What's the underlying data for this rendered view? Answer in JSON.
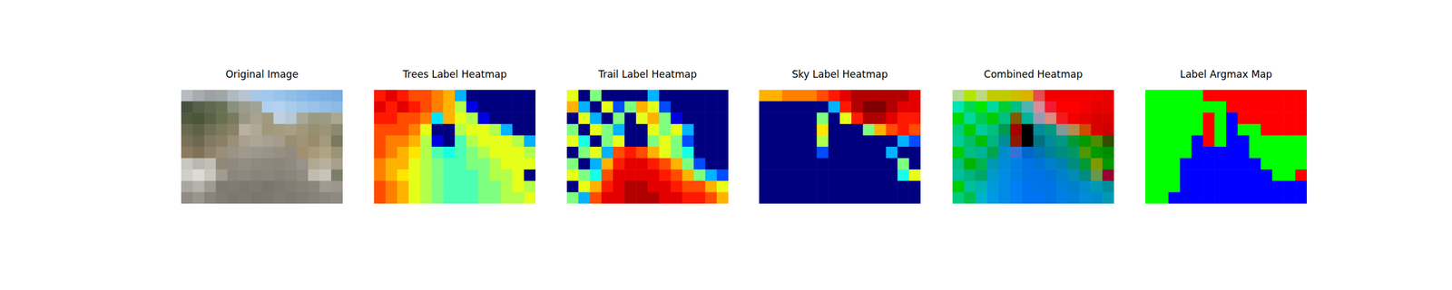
{
  "chart_data": [
    {
      "type": "image",
      "title": "Original Image",
      "tick_labels": false,
      "pixels": [
        [
          "#b8bcc0",
          "#a8acb0",
          "#9ca2a4",
          "#a0a6a8",
          "#b0b8c0",
          "#b8c4d0",
          "#a8c8e8",
          "#a0c8ec",
          "#98c4ec",
          "#90bee8",
          "#88b8e8",
          "#80b4e6",
          "#7cb0e4",
          "#78ace2"
        ],
        [
          "#4a5040",
          "#55604a",
          "#606850",
          "#6a7058",
          "#8a9080",
          "#9a9c90",
          "#a0a498",
          "#b0d0f0",
          "#b4d2f0",
          "#a8cceb",
          "#a0c6ea",
          "#98c2e8",
          "#90bee6",
          "#8cbae4"
        ],
        [
          "#505a40",
          "#4a5638",
          "#5a6244",
          "#687050",
          "#7a7a60",
          "#9a9684",
          "#a8a290",
          "#a09a80",
          "#c0d0e0",
          "#b8c8d4",
          "#a8a898",
          "#9a9a80",
          "#9c9a84",
          "#a8a890"
        ],
        [
          "#6a6a50",
          "#5e6248",
          "#707058",
          "#7e7a60",
          "#8a8268",
          "#b8b0a0",
          "#b0a898",
          "#a09878",
          "#a49c80",
          "#a8a084",
          "#a09878",
          "#988e70",
          "#9c9478",
          "#8a8a70"
        ],
        [
          "#7a7058",
          "#6e6850",
          "#827a60",
          "#8a8068",
          "#9a9078",
          "#a8a090",
          "#aca494",
          "#a8a090",
          "#a49c8c",
          "#988e70",
          "#a09474",
          "#988c6c",
          "#a49a7c",
          "#7a7a60"
        ],
        [
          "#8a7a60",
          "#7e7258",
          "#90826a",
          "#9a8e78",
          "#9a9488",
          "#a09a8e",
          "#9e988c",
          "#9a9488",
          "#969084",
          "#928c80",
          "#a09070",
          "#a89a7a",
          "#b0a484",
          "#9c9478"
        ],
        [
          "#c8c8c0",
          "#b8b8b0",
          "#c0c0b8",
          "#908878",
          "#8e8a80",
          "#928e84",
          "#8e8a80",
          "#8c887e",
          "#8a867c",
          "#8e8a80",
          "#98928a",
          "#b0a890",
          "#b8b09c",
          "#a8a08c"
        ],
        [
          "#d0d0c8",
          "#dcdcd4",
          "#c8c8c0",
          "#a09a90",
          "#8a867c",
          "#8c887e",
          "#88847a",
          "#8a867c",
          "#86827a",
          "#8a867c",
          "#908c82",
          "#c0bcb0",
          "#c8c4b8",
          "#7a8068"
        ],
        [
          "#a8a8a0",
          "#b4b4ac",
          "#9c9c94",
          "#7e7a72",
          "#807c74",
          "#7c7870",
          "#7e7a72",
          "#7a766e",
          "#7e7a72",
          "#827e76",
          "#868278",
          "#8a867c",
          "#a09a90",
          "#9c968c"
        ],
        [
          "#908c84",
          "#9a968e",
          "#88847c",
          "#807c74",
          "#7c7870",
          "#7e7a72",
          "#7a766e",
          "#7c7870",
          "#807c74",
          "#7e7a72",
          "#827e76",
          "#86827a",
          "#8a867e",
          "#8e8a82"
        ]
      ]
    },
    {
      "type": "heatmap",
      "title": "Trees Label Heatmap",
      "tick_labels": false,
      "vlim": [
        0,
        1
      ],
      "colors": [
        "#00007f",
        "#0000ff",
        "#007fff",
        "#00ffff",
        "#7fff7f",
        "#ffff00",
        "#ff7f00",
        "#ff0000",
        "#7f0000"
      ],
      "cells": [
        [
          0.85,
          0.9,
          0.85,
          0.8,
          0.8,
          0.75,
          0.7,
          0.3,
          0,
          0,
          0,
          0,
          0,
          0
        ],
        [
          0.9,
          0.85,
          0.9,
          0.85,
          0.8,
          0.75,
          0.7,
          0.55,
          0.1,
          0,
          0,
          0,
          0,
          0
        ],
        [
          0.85,
          0.85,
          0.8,
          0.8,
          0.75,
          0.35,
          0.7,
          0.6,
          0.55,
          0.1,
          0,
          0,
          0,
          0
        ],
        [
          0.8,
          0.8,
          0.8,
          0.75,
          0.6,
          0,
          0,
          0.55,
          0.6,
          0.6,
          0.55,
          0.3,
          0,
          0
        ],
        [
          0.8,
          0.75,
          0.75,
          0.7,
          0.55,
          0.1,
          0,
          0.45,
          0.55,
          0.6,
          0.6,
          0.6,
          0.55,
          0.3
        ],
        [
          0.8,
          0.75,
          0.7,
          0.65,
          0.55,
          0.45,
          0.4,
          0.45,
          0.5,
          0.55,
          0.6,
          0.6,
          0.6,
          0.55
        ],
        [
          0.75,
          0.7,
          0.7,
          0.6,
          0.55,
          0.5,
          0.45,
          0.45,
          0.5,
          0.5,
          0.55,
          0.6,
          0.6,
          0.6
        ],
        [
          0.75,
          0.7,
          0.65,
          0.6,
          0.55,
          0.5,
          0.45,
          0.45,
          0.45,
          0.5,
          0.55,
          0.55,
          0.6,
          0
        ],
        [
          0.8,
          0.75,
          0.7,
          0.6,
          0.55,
          0.5,
          0.45,
          0.45,
          0.45,
          0.5,
          0.5,
          0.55,
          0.6,
          0.55
        ],
        [
          0.8,
          0.75,
          0.7,
          0.6,
          0.55,
          0.5,
          0.45,
          0.45,
          0.45,
          0.5,
          0.5,
          0.55,
          0.55,
          0.6
        ]
      ]
    },
    {
      "type": "heatmap",
      "title": "Trail Label Heatmap",
      "tick_labels": false,
      "vlim": [
        0,
        1
      ],
      "colors": [
        "#00007f",
        "#0000ff",
        "#007fff",
        "#00ffff",
        "#7fff7f",
        "#ffff00",
        "#ff7f00",
        "#ff0000",
        "#7f0000"
      ],
      "cells": [
        [
          0.6,
          0,
          0.5,
          0,
          0,
          0,
          0,
          0.3,
          0,
          0,
          0,
          0,
          0,
          0
        ],
        [
          0.7,
          0.3,
          0,
          0.6,
          0.2,
          0.5,
          0.7,
          0.6,
          0.2,
          0,
          0,
          0,
          0,
          0
        ],
        [
          0,
          0.6,
          0.3,
          0,
          0.5,
          0,
          0.6,
          0.7,
          0.5,
          0.1,
          0,
          0,
          0,
          0
        ],
        [
          0.5,
          0,
          0.6,
          0.5,
          0.3,
          0,
          0,
          0.6,
          0.5,
          0.6,
          0.3,
          0,
          0,
          0
        ],
        [
          0.6,
          0.4,
          0,
          0.5,
          0.6,
          0,
          0,
          0.5,
          0.6,
          0.5,
          0.2,
          0,
          0,
          0
        ],
        [
          0,
          0.5,
          0.6,
          0.3,
          0.8,
          0.85,
          0.8,
          0.7,
          0.6,
          0.5,
          0.4,
          0,
          0,
          0
        ],
        [
          0.5,
          0,
          0.3,
          0.7,
          0.85,
          0.9,
          0.9,
          0.85,
          0.8,
          0.7,
          0.5,
          0.2,
          0,
          0
        ],
        [
          0.6,
          0.5,
          0.4,
          0.8,
          0.9,
          0.9,
          0.9,
          0.9,
          0.85,
          0.8,
          0.7,
          0.5,
          0.3,
          0.2
        ],
        [
          0,
          0.6,
          0.7,
          0.85,
          0.9,
          0.95,
          0.95,
          0.9,
          0.9,
          0.85,
          0.8,
          0.8,
          0.7,
          0.6
        ],
        [
          0.5,
          0.3,
          0.8,
          0.9,
          0.9,
          0.95,
          0.95,
          0.95,
          0.9,
          0.9,
          0.85,
          0.85,
          0.8,
          0.7
        ]
      ]
    },
    {
      "type": "heatmap",
      "title": "Sky Label Heatmap",
      "tick_labels": false,
      "vlim": [
        0,
        1
      ],
      "colors": [
        "#00007f",
        "#0000ff",
        "#007fff",
        "#00ffff",
        "#7fff7f",
        "#ffff00",
        "#ff7f00",
        "#ff0000",
        "#7f0000"
      ],
      "cells": [
        [
          0.7,
          0.7,
          0.75,
          0.75,
          0.75,
          0.8,
          0.85,
          0.9,
          0.95,
          0.95,
          0.95,
          0.95,
          0.95,
          0.9
        ],
        [
          0,
          0,
          0,
          0,
          0,
          0,
          0.3,
          0.85,
          0.95,
          1,
          1,
          0.95,
          0.9,
          0.9
        ],
        [
          0,
          0,
          0,
          0,
          0,
          0.5,
          0,
          0.6,
          0.85,
          0.95,
          0.95,
          0.9,
          0.85,
          0.85
        ],
        [
          0,
          0,
          0,
          0,
          0,
          0.65,
          0,
          0,
          0,
          0.5,
          0.7,
          0.8,
          0.85,
          0.8
        ],
        [
          0,
          0,
          0,
          0,
          0,
          0.55,
          0,
          0,
          0,
          0,
          0,
          0,
          0.3,
          0.2
        ],
        [
          0,
          0,
          0,
          0,
          0,
          0.2,
          0,
          0,
          0,
          0,
          0,
          0.3,
          0,
          0
        ],
        [
          0,
          0,
          0,
          0,
          0,
          0,
          0,
          0,
          0,
          0,
          0,
          0,
          0.5,
          0
        ],
        [
          0,
          0,
          0,
          0,
          0,
          0,
          0,
          0,
          0,
          0,
          0,
          0,
          0.4,
          0.6
        ],
        [
          0,
          0,
          0,
          0,
          0,
          0,
          0,
          0,
          0,
          0,
          0,
          0,
          0,
          0
        ],
        [
          0,
          0,
          0,
          0,
          0,
          0,
          0,
          0,
          0,
          0,
          0,
          0,
          0,
          0
        ]
      ]
    },
    {
      "type": "rgb",
      "title": "Combined Heatmap",
      "tick_labels": false,
      "channels": [
        "Sky Label Heatmap",
        "Trees Label Heatmap",
        "Trail Label Heatmap"
      ]
    },
    {
      "type": "argmax",
      "title": "Label Argmax Map",
      "tick_labels": false,
      "sources": [
        "Trees Label Heatmap",
        "Trail Label Heatmap",
        "Sky Label Heatmap"
      ],
      "colors": [
        "#00ff00",
        "#0000ff",
        "#ff0000"
      ]
    }
  ]
}
